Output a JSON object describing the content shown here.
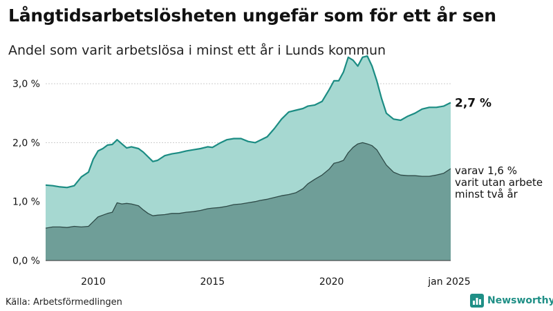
{
  "header": {
    "title": "Långtidsarbetslösheten ungefär som för ett år sen",
    "subtitle": "Andel som varit arbetslösa i minst ett år i Lunds kommun"
  },
  "footer": {
    "source": "Källa: Arbetsförmedlingen",
    "brand": "Newsworthy"
  },
  "colors": {
    "total_fill": "#a6d8d1",
    "total_line": "#1b8c83",
    "long_fill": "#6f9e98",
    "long_line": "#2e4a47",
    "grid": "#cccccc",
    "text": "#111111",
    "brand": "#1f8f86"
  },
  "icons": {
    "brand_logo": "bar-chart-icon"
  },
  "chart_data": {
    "type": "area",
    "title": "Långtidsarbetslösheten ungefär som för ett år sen",
    "subtitle": "Andel som varit arbetslösa i minst ett år i Lunds kommun",
    "xlabel": "",
    "ylabel": "",
    "ylim": [
      0,
      3.6
    ],
    "xlim": [
      2008.0,
      2025.0
    ],
    "y_ticks": [
      0,
      1.0,
      2.0,
      3.0
    ],
    "y_tick_labels": [
      "0,0 %",
      "1,0 %",
      "2,0 %",
      "3,0 %"
    ],
    "x_ticks": [
      2010,
      2015,
      2020,
      2025
    ],
    "x_tick_labels": [
      "2010",
      "2015",
      "2020",
      "jan 2025"
    ],
    "grid": true,
    "series": [
      {
        "key": "total",
        "x": [
          2008.0,
          2008.3,
          2008.6,
          2008.9,
          2009.2,
          2009.5,
          2009.8,
          2010.0,
          2010.2,
          2010.4,
          2010.6,
          2010.8,
          2011.0,
          2011.2,
          2011.4,
          2011.6,
          2011.9,
          2012.1,
          2012.3,
          2012.5,
          2012.7,
          2013.0,
          2013.3,
          2013.6,
          2013.9,
          2014.2,
          2014.5,
          2014.8,
          2015.0,
          2015.3,
          2015.6,
          2015.9,
          2016.2,
          2016.5,
          2016.8,
          2017.0,
          2017.3,
          2017.6,
          2017.9,
          2018.2,
          2018.5,
          2018.8,
          2019.0,
          2019.3,
          2019.6,
          2019.9,
          2020.1,
          2020.3,
          2020.5,
          2020.7,
          2020.9,
          2021.1,
          2021.3,
          2021.5,
          2021.7,
          2021.9,
          2022.1,
          2022.3,
          2022.6,
          2022.9,
          2023.2,
          2023.5,
          2023.8,
          2024.1,
          2024.4,
          2024.7,
          2025.0
        ],
        "values": [
          1.28,
          1.27,
          1.25,
          1.24,
          1.27,
          1.42,
          1.5,
          1.72,
          1.86,
          1.9,
          1.96,
          1.97,
          2.05,
          1.98,
          1.91,
          1.93,
          1.9,
          1.84,
          1.76,
          1.68,
          1.7,
          1.78,
          1.81,
          1.83,
          1.86,
          1.88,
          1.9,
          1.93,
          1.92,
          1.99,
          2.05,
          2.07,
          2.07,
          2.02,
          2.0,
          2.04,
          2.1,
          2.24,
          2.4,
          2.52,
          2.55,
          2.58,
          2.62,
          2.64,
          2.7,
          2.9,
          3.05,
          3.05,
          3.2,
          3.45,
          3.4,
          3.3,
          3.45,
          3.47,
          3.3,
          3.05,
          2.75,
          2.5,
          2.4,
          2.38,
          2.45,
          2.5,
          2.57,
          2.6,
          2.6,
          2.62,
          2.68
        ]
      },
      {
        "key": "long_term",
        "x": [
          2008.0,
          2008.3,
          2008.6,
          2008.9,
          2009.2,
          2009.5,
          2009.8,
          2010.0,
          2010.2,
          2010.4,
          2010.6,
          2010.8,
          2011.0,
          2011.2,
          2011.4,
          2011.6,
          2011.9,
          2012.1,
          2012.3,
          2012.5,
          2012.7,
          2013.0,
          2013.3,
          2013.6,
          2013.9,
          2014.2,
          2014.5,
          2014.8,
          2015.0,
          2015.3,
          2015.6,
          2015.9,
          2016.2,
          2016.5,
          2016.8,
          2017.0,
          2017.3,
          2017.6,
          2017.9,
          2018.2,
          2018.5,
          2018.8,
          2019.0,
          2019.3,
          2019.6,
          2019.9,
          2020.1,
          2020.3,
          2020.5,
          2020.7,
          2020.9,
          2021.1,
          2021.3,
          2021.5,
          2021.7,
          2021.9,
          2022.1,
          2022.3,
          2022.6,
          2022.9,
          2023.2,
          2023.5,
          2023.8,
          2024.1,
          2024.4,
          2024.7,
          2025.0
        ],
        "values": [
          0.55,
          0.57,
          0.57,
          0.56,
          0.58,
          0.57,
          0.58,
          0.66,
          0.74,
          0.77,
          0.8,
          0.82,
          0.98,
          0.96,
          0.97,
          0.96,
          0.93,
          0.86,
          0.8,
          0.76,
          0.77,
          0.78,
          0.8,
          0.8,
          0.82,
          0.83,
          0.85,
          0.88,
          0.89,
          0.9,
          0.92,
          0.95,
          0.96,
          0.98,
          1.0,
          1.02,
          1.04,
          1.07,
          1.1,
          1.12,
          1.15,
          1.22,
          1.3,
          1.38,
          1.45,
          1.55,
          1.65,
          1.67,
          1.7,
          1.83,
          1.92,
          1.98,
          2.0,
          1.98,
          1.95,
          1.88,
          1.75,
          1.62,
          1.5,
          1.45,
          1.44,
          1.44,
          1.43,
          1.43,
          1.45,
          1.48,
          1.56
        ]
      }
    ],
    "annotations": [
      {
        "key": "total_end_label",
        "text": "2,7 %"
      },
      {
        "key": "long_term_label",
        "lines": [
          "varav 1,6 %",
          "varit utan arbete",
          "minst två år"
        ]
      }
    ]
  }
}
